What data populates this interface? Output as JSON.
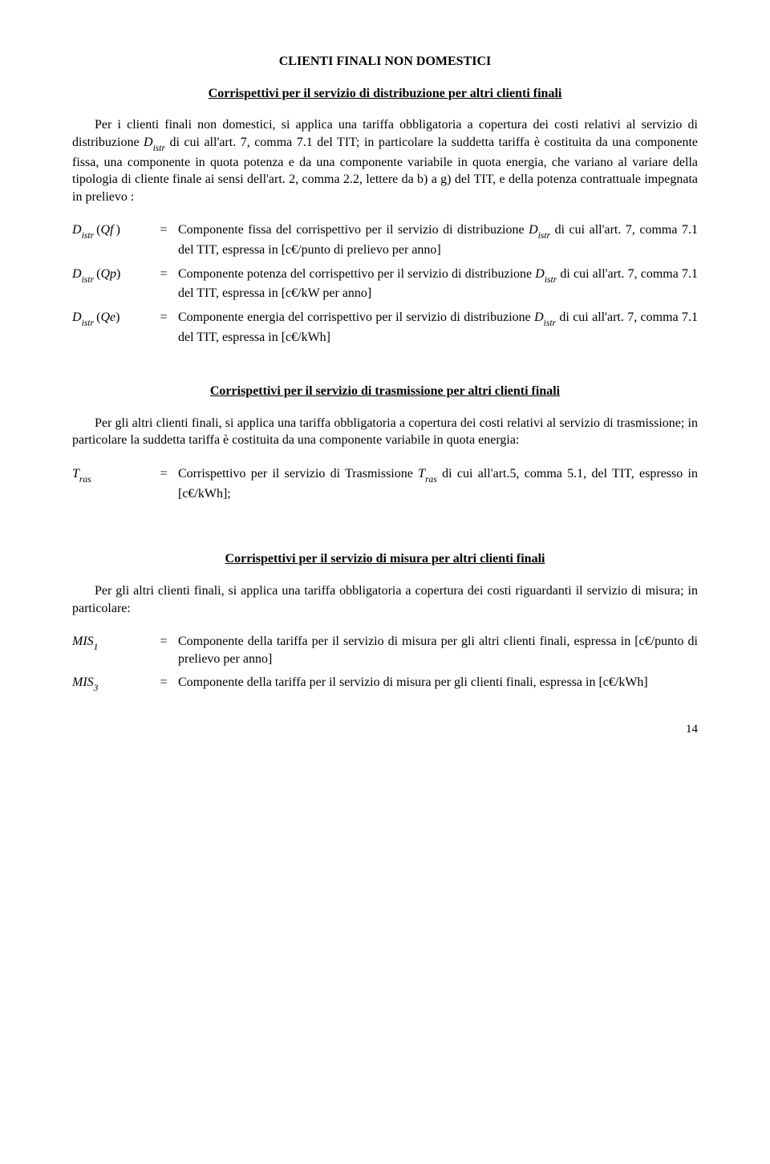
{
  "header_title": "CLIENTI FINALI NON DOMESTICI",
  "sec1": {
    "title": "Corrispettivi per il servizio di distribuzione per altri clienti finali",
    "para1_a": "Per i clienti finali non domestici, si applica una tariffa obbligatoria a copertura dei costi relativi al servizio di distribuzione",
    "para1_sym": "D",
    "para1_sub": "istr",
    "para1_b": " di cui all'art. 7, comma 7.1 del TIT; in particolare la suddetta tariffa è costituita da una componente fissa, una componente in quota potenza e da una componente variabile in quota energia, che variano al variare della tipologia di cliente finale ai sensi dell'art. 2, comma 2.2, lettere da b) a g) del TIT, e della potenza contrattuale impegnata in prelievo :",
    "rows": [
      {
        "sym_main": "D",
        "sym_sub": "istr",
        "sym_arg": "Qf",
        "desc_a": "Componente fissa del corrispettivo per il servizio di distribuzione ",
        "desc_sym": "D",
        "desc_sub": "istr",
        "desc_b": " di cui all'art. 7, comma 7.1 del TIT, espressa in [c€/punto di prelievo per anno]"
      },
      {
        "sym_main": "D",
        "sym_sub": "istr",
        "sym_arg": "Qp",
        "desc_a": "Componente potenza del corrispettivo per il servizio di distribuzione ",
        "desc_sym": "D",
        "desc_sub": "istr",
        "desc_b": " di cui all'art. 7, comma 7.1 del TIT, espressa in [c€/kW per anno]"
      },
      {
        "sym_main": "D",
        "sym_sub": "istr",
        "sym_arg": "Qe",
        "desc_a": "Componente energia del corrispettivo per il servizio di distribuzione ",
        "desc_sym": "D",
        "desc_sub": "istr",
        "desc_b": " di cui all'art. 7, comma 7.1 del TIT, espressa in [c€/kWh]"
      }
    ]
  },
  "sec2": {
    "title": "Corrispettivi per il servizio di trasmissione per altri clienti finali",
    "para": "Per gli altri clienti finali, si applica una tariffa obbligatoria a copertura dei costi relativi al servizio di trasmissione; in particolare la suddetta tariffa è costituita da una componente variabile in quota energia:",
    "row": {
      "sym_main": "T",
      "sym_sub": "ras",
      "desc_a": "Corrispettivo per il servizio di Trasmissione ",
      "desc_sym": "T",
      "desc_sub": "ras",
      "desc_b": " di cui all'art.5, comma 5.1, del TIT, espresso in  [c€/kWh];"
    }
  },
  "sec3": {
    "title": "Corrispettivi per il servizio di misura per altri clienti finali",
    "para": "Per gli altri clienti finali, si applica una tariffa obbligatoria a copertura dei costi riguardanti il servizio di misura; in particolare:",
    "rows": [
      {
        "sym_main": "MIS",
        "sym_sub": "1",
        "desc": "Componente della tariffa per il servizio di misura per gli altri clienti finali, espressa in  [c€/punto di prelievo per anno]"
      },
      {
        "sym_main": "MIS",
        "sym_sub": "3",
        "desc": "Componente della tariffa per il servizio di misura per gli clienti finali, espressa   in [c€/kWh]"
      }
    ]
  },
  "page_number": "14",
  "eq": "="
}
